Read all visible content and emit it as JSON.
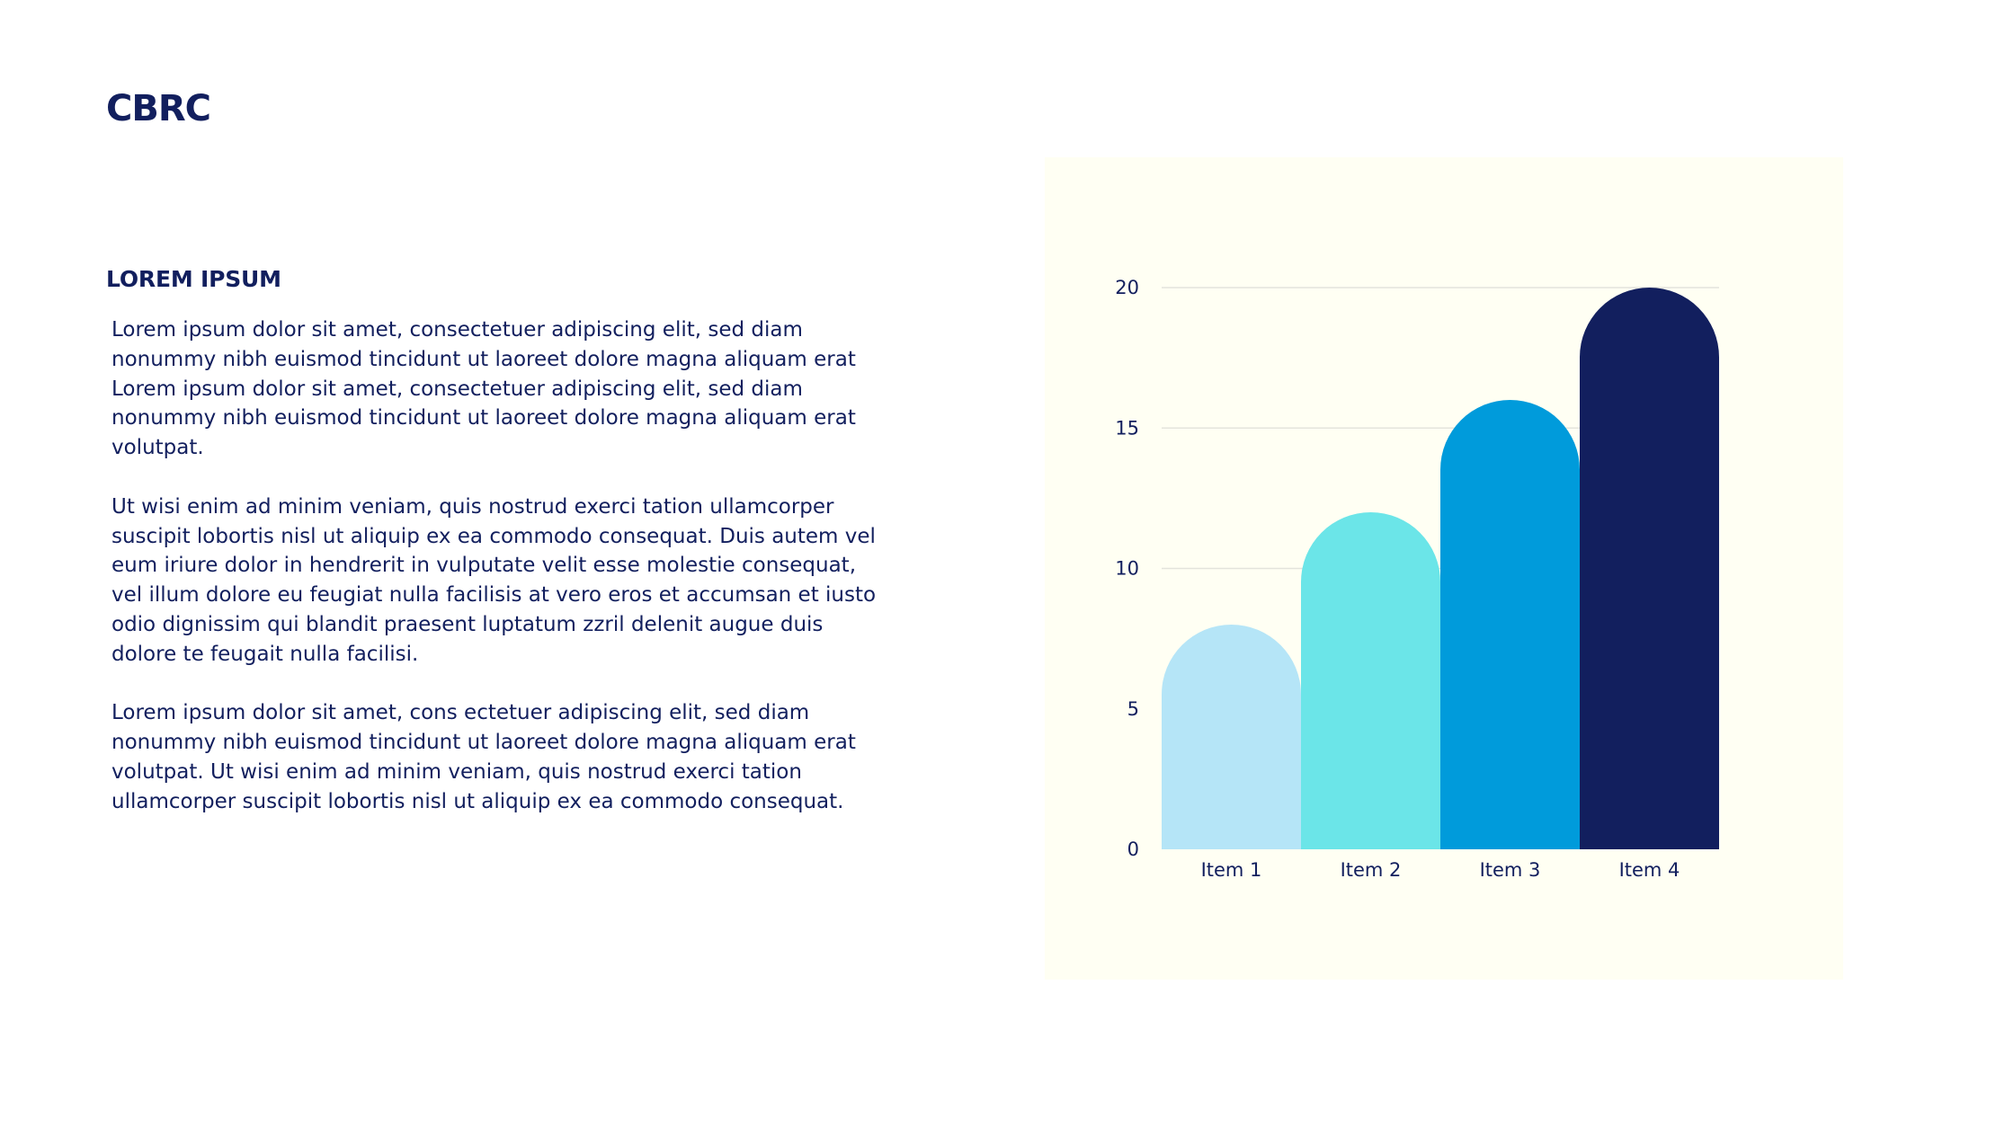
{
  "brand": {
    "logo_text": "CBRC"
  },
  "content": {
    "heading": "LOREM IPSUM",
    "paragraphs": [
      "Lorem ipsum dolor sit amet, consectetuer adipiscing elit, sed diam\nnonummy nibh euismod tincidunt ut laoreet dolore magna aliquam erat\nLorem ipsum dolor sit amet, consectetuer adipiscing elit, sed diam\nnonummy nibh euismod tincidunt ut laoreet dolore magna aliquam erat\nvolutpat.",
      "Ut wisi enim ad minim veniam, quis nostrud exerci tation ullamcorper\nsuscipit lobortis nisl ut aliquip ex ea commodo consequat. Duis autem vel\neum iriure dolor in hendrerit in vulputate velit esse molestie consequat,\nvel illum dolore eu feugiat nulla facilisis at vero eros et accumsan et iusto\nodio dignissim qui blandit praesent luptatum zzril delenit augue duis\ndolore te feugait nulla facilisi.",
      "Lorem ipsum dolor sit amet, cons ectetuer adipiscing elit, sed diam\nnonummy nibh euismod tincidunt ut laoreet dolore magna aliquam erat\nvolutpat. Ut wisi enim ad minim veniam, quis nostrud exerci tation\nullamcorper suscipit lobortis nisl ut aliquip ex ea commodo consequat."
    ]
  },
  "colors": {
    "brand_navy": "#121f5e",
    "panel_background": "#fffff3",
    "gridline": "#e4e4dc"
  },
  "chart_data": {
    "type": "bar",
    "categories": [
      "Item 1",
      "Item 2",
      "Item 3",
      "Item 4"
    ],
    "values": [
      8,
      12,
      16,
      20
    ],
    "colors": [
      "#b5e5f7",
      "#6be5e8",
      "#009bdb",
      "#121f5e"
    ],
    "bar_style": "rounded-top",
    "ylim": [
      0,
      20
    ],
    "yticks": [
      0,
      5,
      10,
      15,
      20
    ],
    "grid": true,
    "title": "",
    "xlabel": "",
    "ylabel": "",
    "legend": "none"
  }
}
